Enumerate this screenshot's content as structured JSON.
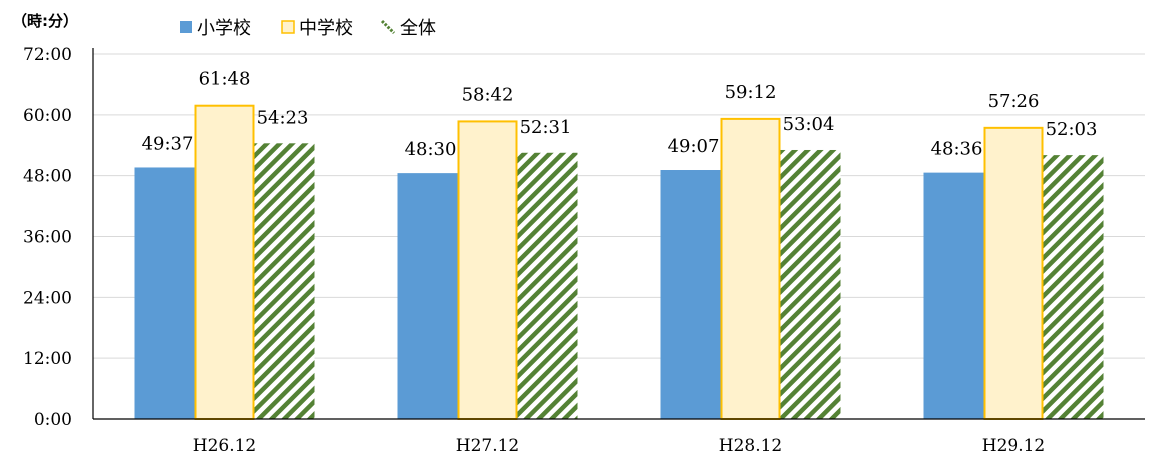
{
  "chart_data": {
    "type": "bar",
    "unit_label": "（時:分）",
    "categories": [
      "H26.12",
      "H27.12",
      "H28.12",
      "H29.12"
    ],
    "y_ticks": [
      "0:00",
      "12:00",
      "24:00",
      "36:00",
      "48:00",
      "60:00",
      "72:00"
    ],
    "ylim_minutes": [
      0,
      4320
    ],
    "legend_position": "top-left",
    "gridlines": true,
    "series": [
      {
        "name": "小学校",
        "color": "#5b9bd5",
        "style": "solid",
        "values_minutes": [
          2977,
          2910,
          2947,
          2916
        ],
        "labels": [
          "49:37",
          "48:30",
          "49:07",
          "48:36"
        ]
      },
      {
        "name": "中学校",
        "color": "#fff2cc",
        "border": "#ffc000",
        "style": "outlined",
        "values_minutes": [
          3708,
          3522,
          3552,
          3446
        ],
        "labels": [
          "61:48",
          "58:42",
          "59:12",
          "57:26"
        ]
      },
      {
        "name": "全体",
        "color": "#548235",
        "style": "hatched",
        "values_minutes": [
          3263,
          3151,
          3184,
          3123
        ],
        "labels": [
          "54:23",
          "52:31",
          "53:04",
          "52:03"
        ]
      }
    ]
  }
}
